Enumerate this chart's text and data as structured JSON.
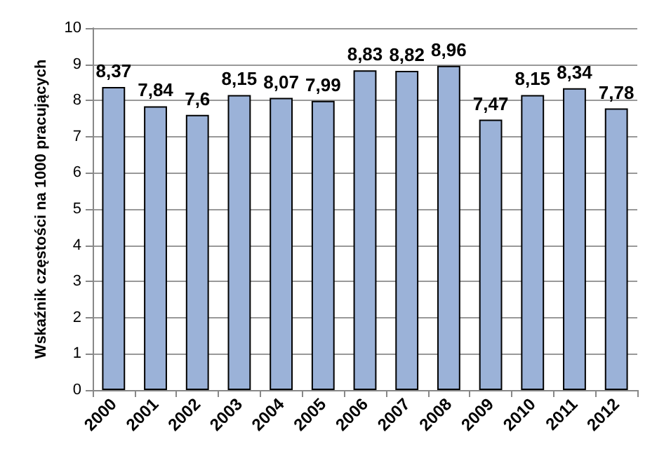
{
  "chart_data": {
    "type": "bar",
    "ylabel": "Wskaźnik częstości na 1000 pracujących",
    "categories": [
      "2000",
      "2001",
      "2002",
      "2003",
      "2004",
      "2005",
      "2006",
      "2007",
      "2008",
      "2009",
      "2010",
      "2011",
      "2012"
    ],
    "values": [
      8.37,
      7.84,
      7.6,
      8.15,
      8.07,
      7.99,
      8.83,
      8.82,
      8.96,
      7.47,
      8.15,
      8.34,
      7.78
    ],
    "value_labels": [
      "8,37",
      "7,84",
      "7,6",
      "8,15",
      "8,07",
      "7,99",
      "8,83",
      "8,82",
      "8,96",
      "7,47",
      "8,15",
      "8,34",
      "7,78"
    ],
    "color": "#9bb2d8",
    "ylim": [
      0,
      10
    ],
    "yticks": [
      0,
      1,
      2,
      3,
      4,
      5,
      6,
      7,
      8,
      9,
      10
    ],
    "grid": "y"
  }
}
